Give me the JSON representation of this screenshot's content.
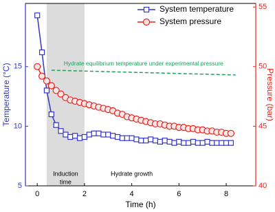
{
  "chart_data": {
    "type": "line",
    "xlabel": "Time (h)",
    "ylabel": "Temperature (°C)",
    "y2label": "Pressure (bar)",
    "x": [
      0,
      0.2,
      0.4,
      0.6,
      0.8,
      1.0,
      1.2,
      1.4,
      1.6,
      1.8,
      2.0,
      2.2,
      2.4,
      2.6,
      2.8,
      3.0,
      3.2,
      3.4,
      3.6,
      3.8,
      4.0,
      4.2,
      4.4,
      4.6,
      4.8,
      5.0,
      5.2,
      5.4,
      5.6,
      5.8,
      6.0,
      6.2,
      6.4,
      6.6,
      6.8,
      7.0,
      7.2,
      7.4,
      7.6,
      7.8,
      8.0,
      8.2
    ],
    "series": [
      {
        "name": "System temperature",
        "color": "#3333cc",
        "marker": "square",
        "values": [
          19.3,
          16.2,
          13.0,
          11.0,
          10.1,
          9.6,
          9.3,
          9.1,
          9.2,
          9.0,
          9.1,
          9.3,
          9.4,
          9.4,
          9.3,
          9.3,
          9.2,
          9.1,
          9.0,
          9.0,
          9.0,
          8.9,
          8.8,
          8.8,
          8.9,
          8.8,
          8.7,
          8.8,
          8.7,
          8.6,
          8.7,
          8.6,
          8.6,
          8.7,
          8.6,
          8.6,
          8.7,
          8.6,
          8.6,
          8.6,
          8.6,
          8.6
        ]
      },
      {
        "name": "System pressure",
        "color": "#e8221b",
        "marker": "circle",
        "axis": "y2",
        "values": [
          50.0,
          49.2,
          48.8,
          48.4,
          48.0,
          47.7,
          47.4,
          47.2,
          47.1,
          47.0,
          46.9,
          46.8,
          46.7,
          46.6,
          46.5,
          46.4,
          46.3,
          46.1,
          46.0,
          45.8,
          45.7,
          45.6,
          45.5,
          45.4,
          45.3,
          45.2,
          45.2,
          45.1,
          45.0,
          45.0,
          44.9,
          44.9,
          44.8,
          44.8,
          44.7,
          44.7,
          44.6,
          44.6,
          44.5,
          44.5,
          44.4,
          44.4
        ]
      }
    ],
    "equilibrium_line": {
      "label": "Hydrate equilibrium temperature under experimental pressure",
      "color": "#19a35b",
      "x": [
        0.6,
        8.4
      ],
      "values": [
        14.7,
        14.3
      ]
    },
    "induction_region": {
      "label_lines": [
        "Induction",
        "time"
      ],
      "range": [
        0.4,
        2
      ],
      "color": "#dcdcdc"
    },
    "growth_label": "Hydrate growth",
    "xlim": [
      -0.5,
      9.25
    ],
    "xticks": [
      0,
      2,
      4,
      6,
      8
    ],
    "ylim": [
      5,
      20.3
    ],
    "yticks": [
      5,
      10,
      15
    ],
    "y2lim": [
      40,
      55.3
    ],
    "y2ticks": [
      40,
      45,
      50,
      55
    ],
    "legend": "top-right"
  }
}
